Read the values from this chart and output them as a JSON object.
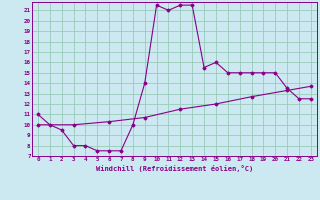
{
  "xlabel": "Windchill (Refroidissement éolien,°C)",
  "background_color": "#cce8f0",
  "plot_bg_color": "#cce8f0",
  "grid_color": "#99ccbb",
  "line_color": "#880088",
  "xlim": [
    -0.5,
    23.5
  ],
  "ylim": [
    7,
    21.8
  ],
  "xticks": [
    0,
    1,
    2,
    3,
    4,
    5,
    6,
    7,
    8,
    9,
    10,
    11,
    12,
    13,
    14,
    15,
    16,
    17,
    18,
    19,
    20,
    21,
    22,
    23
  ],
  "yticks": [
    7,
    8,
    9,
    10,
    11,
    12,
    13,
    14,
    15,
    16,
    17,
    18,
    19,
    20,
    21
  ],
  "curve1_x": [
    0,
    1,
    2,
    3,
    4,
    5,
    6,
    7,
    8,
    9,
    10,
    11,
    12,
    13,
    14,
    15,
    16,
    17,
    18,
    19,
    20,
    21,
    22,
    23
  ],
  "curve1_y": [
    11.0,
    10.0,
    9.5,
    8.0,
    8.0,
    7.5,
    7.5,
    7.5,
    10.0,
    14.0,
    21.5,
    21.0,
    21.5,
    21.5,
    15.5,
    16.0,
    15.0,
    15.0,
    15.0,
    15.0,
    15.0,
    13.5,
    12.5,
    12.5
  ],
  "curve2_x": [
    0,
    3,
    6,
    9,
    12,
    15,
    18,
    21,
    23
  ],
  "curve2_y": [
    10.0,
    10.0,
    10.3,
    10.7,
    11.5,
    12.0,
    12.7,
    13.3,
    13.7
  ]
}
